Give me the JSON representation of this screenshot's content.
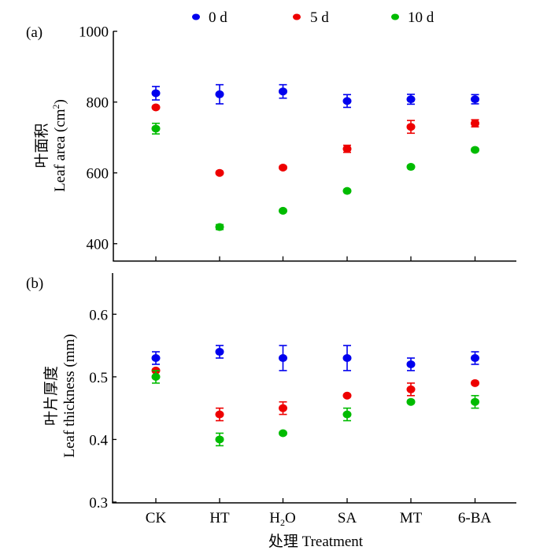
{
  "chart_data": [
    {
      "type": "scatter",
      "panel_label": "(a)",
      "title": "",
      "ylabel_cn": "叶面积",
      "ylabel_en": "Leaf area (cm",
      "ylabel_sup": "2",
      "ylabel_close": ")",
      "xlabel": "",
      "ylim": [
        351,
        1000
      ],
      "yticks": [
        400,
        600,
        800,
        1000
      ],
      "ytick_labels": [
        "400",
        "600",
        "800",
        "1000"
      ],
      "categories": [
        "CK",
        "HT",
        "H2O",
        "SA",
        "MT",
        "6-BA"
      ],
      "grid": false,
      "series": [
        {
          "name": "0 d",
          "color": "#0000ee",
          "values": [
            825,
            822,
            830,
            803,
            808,
            808
          ],
          "errors": [
            19,
            27,
            19,
            18,
            14,
            13
          ]
        },
        {
          "name": "5 d",
          "color": "#ee0000",
          "values": [
            785,
            600,
            615,
            668,
            730,
            740
          ],
          "errors": [
            0,
            0,
            0,
            10,
            18,
            10
          ]
        },
        {
          "name": "10 d",
          "color": "#00bb00",
          "values": [
            725,
            447,
            493,
            549,
            617,
            665
          ],
          "errors": [
            15,
            7,
            0,
            0,
            0,
            3
          ]
        }
      ]
    },
    {
      "type": "scatter",
      "panel_label": "(b)",
      "title": "",
      "ylabel_cn": "叶片厚度",
      "ylabel_en": "Leaf thickness (mm)",
      "xlabel_cn": "处理",
      "xlabel_en": "Treatment",
      "ylim": [
        0.3,
        0.666
      ],
      "yticks": [
        0.3,
        0.4,
        0.5,
        0.6
      ],
      "ytick_labels": [
        "0.3",
        "0.4",
        "0.5",
        "0.6"
      ],
      "categories": [
        "CK",
        "HT",
        "H2O",
        "SA",
        "MT",
        "6-BA"
      ],
      "grid": false,
      "series": [
        {
          "name": "0 d",
          "color": "#0000ee",
          "values": [
            0.53,
            0.54,
            0.53,
            0.53,
            0.52,
            0.53
          ],
          "errors": [
            0.01,
            0.01,
            0.02,
            0.02,
            0.01,
            0.01
          ]
        },
        {
          "name": "5 d",
          "color": "#ee0000",
          "values": [
            0.51,
            0.44,
            0.45,
            0.47,
            0.48,
            0.49
          ],
          "errors": [
            0,
            0.01,
            0.01,
            0,
            0.01,
            0
          ]
        },
        {
          "name": "10 d",
          "color": "#00bb00",
          "values": [
            0.5,
            0.4,
            0.41,
            0.44,
            0.46,
            0.46
          ],
          "errors": [
            0.01,
            0.01,
            0,
            0.01,
            0,
            0.01
          ]
        }
      ]
    }
  ],
  "legend": {
    "placement": "top-center",
    "items": [
      {
        "label": "0 d",
        "color": "#0000ee"
      },
      {
        "label": "5 d",
        "color": "#ee0000"
      },
      {
        "label": "10 d",
        "color": "#00bb00"
      }
    ]
  },
  "x_tick_labels": {
    "CK": "CK",
    "HT": "HT",
    "H2O_main": "H",
    "H2O_sub": "2",
    "H2O_end": "O",
    "SA": "SA",
    "MT": "MT",
    "6-BA": "6-BA"
  }
}
